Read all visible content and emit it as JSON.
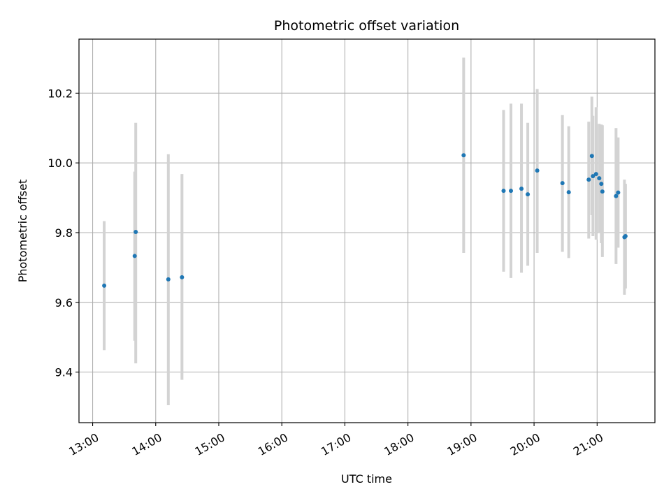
{
  "chart_data": {
    "type": "scatter",
    "title": "Photometric offset variation",
    "xlabel": "UTC time",
    "ylabel": "Photometric offset",
    "x_tick_labels": [
      "13:00",
      "14:00",
      "15:00",
      "16:00",
      "17:00",
      "18:00",
      "19:00",
      "20:00",
      "21:00"
    ],
    "y_tick_labels": [
      "9.4",
      "9.6",
      "9.8",
      "10.0",
      "10.2"
    ],
    "x_ticks": [
      "13:00",
      "14:00",
      "15:00",
      "16:00",
      "17:00",
      "18:00",
      "19:00",
      "20:00",
      "21:00"
    ],
    "y_ticks": [
      9.4,
      9.6,
      9.8,
      10.0,
      10.2
    ],
    "xlim": [
      "12:47",
      "21:55"
    ],
    "ylim": [
      9.255,
      10.355
    ],
    "grid": true,
    "colors": {
      "marker": "#1f77b4",
      "errorbar": "#d3d3d3",
      "grid": "#b0b0b0"
    },
    "points": [
      {
        "x": "13:11",
        "y": 9.648,
        "ymin": 9.463,
        "ymax": 9.833
      },
      {
        "x": "13:40",
        "y": 9.733,
        "ymin": 9.49,
        "ymax": 9.975
      },
      {
        "x": "13:41",
        "y": 9.802,
        "ymin": 9.425,
        "ymax": 10.115
      },
      {
        "x": "14:12",
        "y": 9.666,
        "ymin": 9.305,
        "ymax": 10.025
      },
      {
        "x": "14:25",
        "y": 9.672,
        "ymin": 9.378,
        "ymax": 9.968
      },
      {
        "x": "18:53",
        "y": 10.022,
        "ymin": 9.742,
        "ymax": 10.302
      },
      {
        "x": "19:31",
        "y": 9.92,
        "ymin": 9.688,
        "ymax": 10.152
      },
      {
        "x": "19:38",
        "y": 9.92,
        "ymin": 9.67,
        "ymax": 10.17
      },
      {
        "x": "19:48",
        "y": 9.926,
        "ymin": 9.685,
        "ymax": 10.17
      },
      {
        "x": "19:54",
        "y": 9.91,
        "ymin": 9.705,
        "ymax": 10.115
      },
      {
        "x": "20:03",
        "y": 9.978,
        "ymin": 9.742,
        "ymax": 10.212
      },
      {
        "x": "20:27",
        "y": 9.942,
        "ymin": 9.745,
        "ymax": 10.137
      },
      {
        "x": "20:33",
        "y": 9.916,
        "ymin": 9.727,
        "ymax": 10.105
      },
      {
        "x": "20:52",
        "y": 9.952,
        "ymin": 9.783,
        "ymax": 10.118
      },
      {
        "x": "20:55",
        "y": 10.02,
        "ymin": 9.85,
        "ymax": 10.19
      },
      {
        "x": "20:56",
        "y": 9.962,
        "ymin": 9.79,
        "ymax": 10.135
      },
      {
        "x": "20:59",
        "y": 9.968,
        "ymin": 9.78,
        "ymax": 10.16
      },
      {
        "x": "21:02",
        "y": 9.956,
        "ymin": 9.8,
        "ymax": 10.112
      },
      {
        "x": "21:04",
        "y": 9.94,
        "ymin": 9.77,
        "ymax": 10.11
      },
      {
        "x": "21:05",
        "y": 9.918,
        "ymin": 9.73,
        "ymax": 10.108
      },
      {
        "x": "21:18",
        "y": 9.905,
        "ymin": 9.71,
        "ymax": 10.1
      },
      {
        "x": "21:20",
        "y": 9.915,
        "ymin": 9.757,
        "ymax": 10.073
      },
      {
        "x": "21:26",
        "y": 9.787,
        "ymin": 9.622,
        "ymax": 9.952
      },
      {
        "x": "21:27",
        "y": 9.79,
        "ymin": 9.64,
        "ymax": 9.94
      }
    ]
  }
}
